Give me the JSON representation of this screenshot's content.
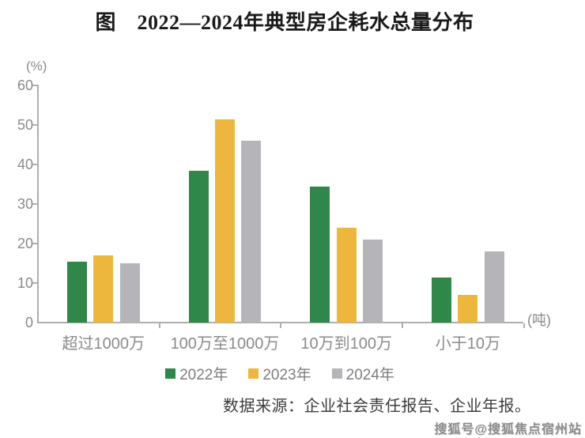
{
  "title": "图　2022—2024年典型房企耗水总量分布",
  "chart_data": {
    "type": "bar",
    "title": "图　2022—2024年典型房企耗水总量分布",
    "categories": [
      "超过1000万",
      "100万至1000万",
      "10万到100万",
      "小于10万"
    ],
    "series": [
      {
        "name": "2022年",
        "color": "#2F874A",
        "values": [
          15.5,
          38.5,
          34.5,
          11.5
        ]
      },
      {
        "name": "2023年",
        "color": "#EDB73E",
        "values": [
          17,
          51.5,
          24,
          7
        ]
      },
      {
        "name": "2024年",
        "color": "#B5B5B9",
        "values": [
          15,
          46,
          21,
          18
        ]
      }
    ],
    "ylabel": "(%)",
    "xlabel": "(吨)",
    "ylim": [
      0,
      60
    ],
    "yticks": [
      0,
      10,
      20,
      30,
      40,
      50,
      60
    ],
    "grid": false,
    "legend_position": "bottom"
  },
  "source_note": "数据来源：企业社会责任报告、企业年报。",
  "watermark": "搜狐号@搜狐焦点宿州站",
  "colors": {
    "series_2022": "#2F874A",
    "series_2023": "#EDB73E",
    "series_2024": "#B5B5B9",
    "axis": "#AEAEAE",
    "text_muted": "#8A8A8A",
    "source_text": "#3C3C3C",
    "title_text": "#1A1A1A"
  }
}
